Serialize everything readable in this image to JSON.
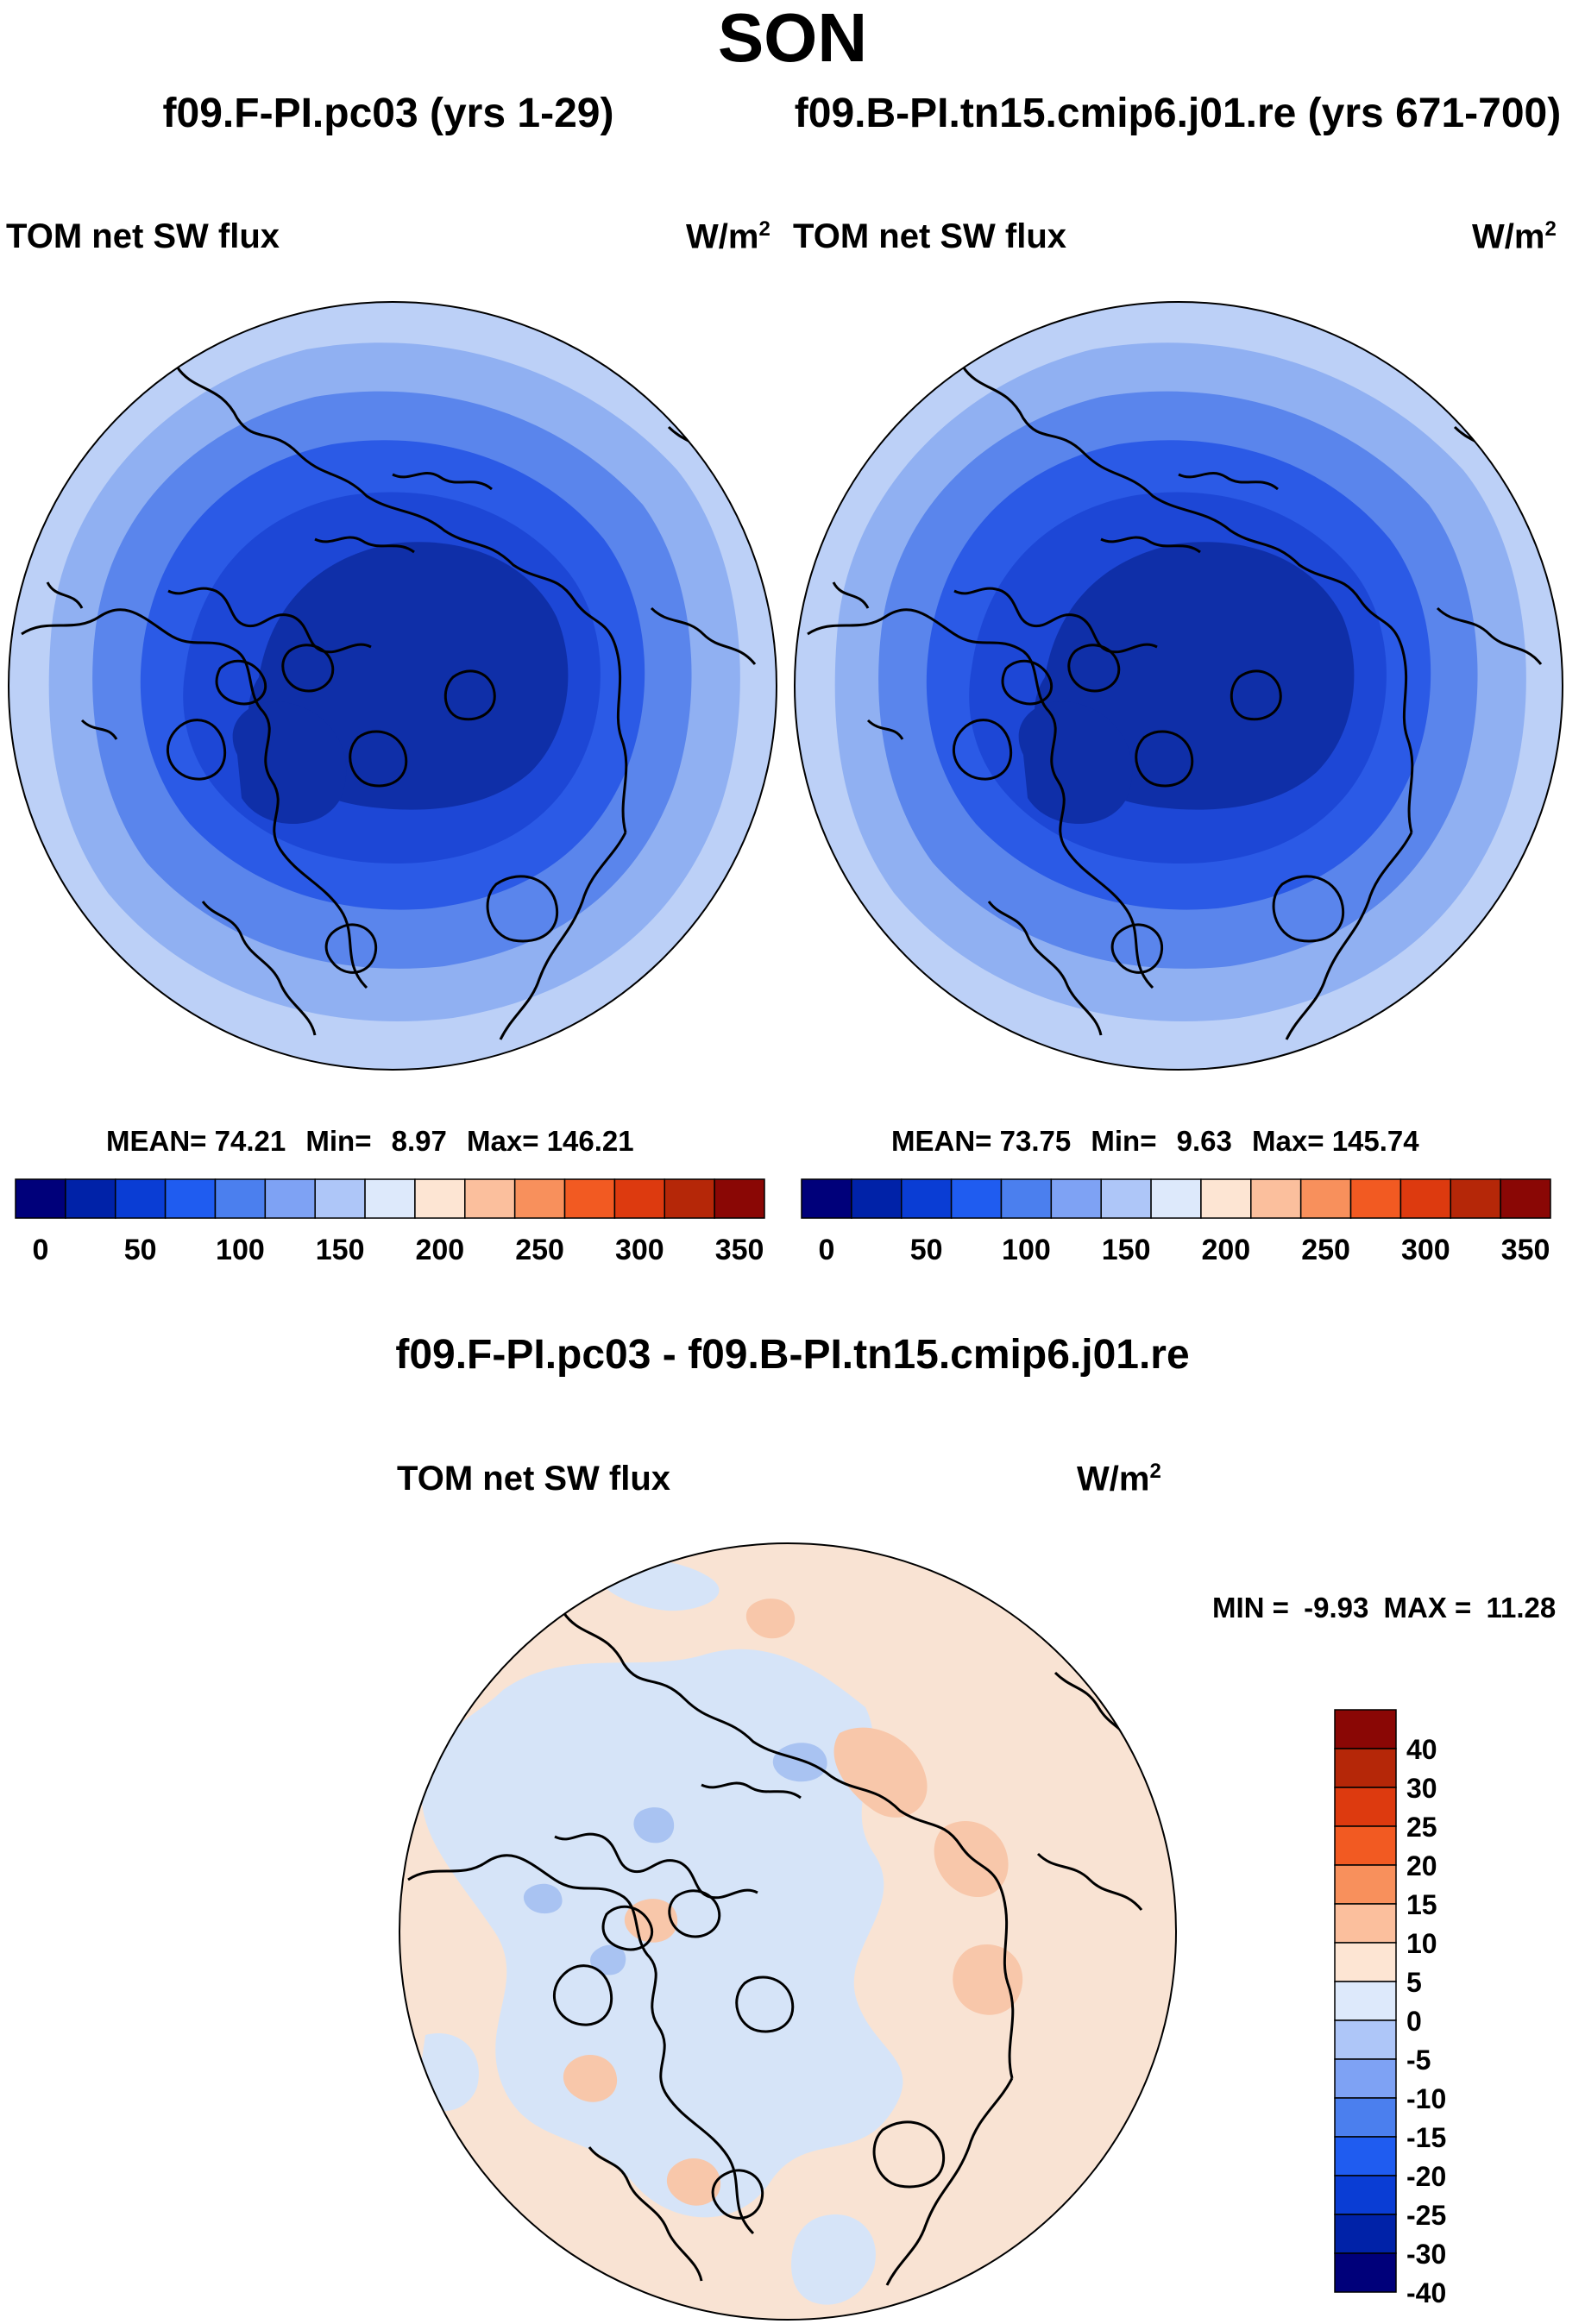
{
  "figure": {
    "season": "SON",
    "left_case": "f09.F-PI.pc03 (yrs 1-29)",
    "right_case": "f09.B-PI.tn15.cmip6.j01.re (yrs 671-700)",
    "diff_case": "f09.F-PI.pc03 - f09.B-PI.tn15.cmip6.j01.re"
  },
  "panels": {
    "left": {
      "variable": "TOM net SW flux",
      "units_base": "W/m",
      "units_exp": "2",
      "mean_label": "MEAN=",
      "mean": "74.21",
      "min_label": "Min=",
      "min": "8.97",
      "max_label": "Max=",
      "max": "146.21"
    },
    "right": {
      "variable": "TOM net SW flux",
      "units_base": "W/m",
      "units_exp": "2",
      "mean_label": "MEAN=",
      "mean": "73.75",
      "min_label": "Min=",
      "min": "9.63",
      "max_label": "Max=",
      "max": "145.74"
    },
    "diff": {
      "variable": "TOM net SW flux",
      "units_base": "W/m",
      "units_exp": "2",
      "min_label": "MIN =",
      "min": "-9.93",
      "max_label": "MAX =",
      "max": "11.28"
    }
  },
  "colorbars": {
    "abs": {
      "colors": [
        "#00007a",
        "#0022a8",
        "#0a3dd4",
        "#1f5cf0",
        "#4b7fee",
        "#7ea2f4",
        "#aec6f8",
        "#dde9fb",
        "#fde5d3",
        "#fbbf9d",
        "#f8905c",
        "#f25a22",
        "#dd3a0f",
        "#b52708",
        "#8a0705"
      ],
      "labels": [
        "0",
        "50",
        "100",
        "150",
        "200",
        "250",
        "300",
        "350"
      ]
    },
    "diff": {
      "colors": [
        "#8a0705",
        "#b52708",
        "#dd3a0f",
        "#f25a22",
        "#f8905c",
        "#fbbf9d",
        "#fde5d3",
        "#dde9fb",
        "#aec6f8",
        "#7ea2f4",
        "#4b7fee",
        "#1f5cf0",
        "#0a3dd4",
        "#0022a8",
        "#00007a"
      ],
      "labels": [
        "40",
        "30",
        "25",
        "20",
        "15",
        "10",
        "5",
        "0",
        "-5",
        "-10",
        "-15",
        "-20",
        "-25",
        "-30",
        "-40"
      ]
    }
  },
  "legend": {
    "map_colors": {
      "level1": "#0f2fa8",
      "level2": "#1d47d6",
      "level3": "#2b5ae6",
      "level4": "#5a85ec",
      "level5": "#90b0f2",
      "level6": "#bcd0f7",
      "diff_base": "#f9e3d3",
      "diff_neg": "#d6e4f8",
      "diff_neg2": "#a9c3f2",
      "diff_pos": "#f8c7aa",
      "coast": "#000000"
    }
  }
}
